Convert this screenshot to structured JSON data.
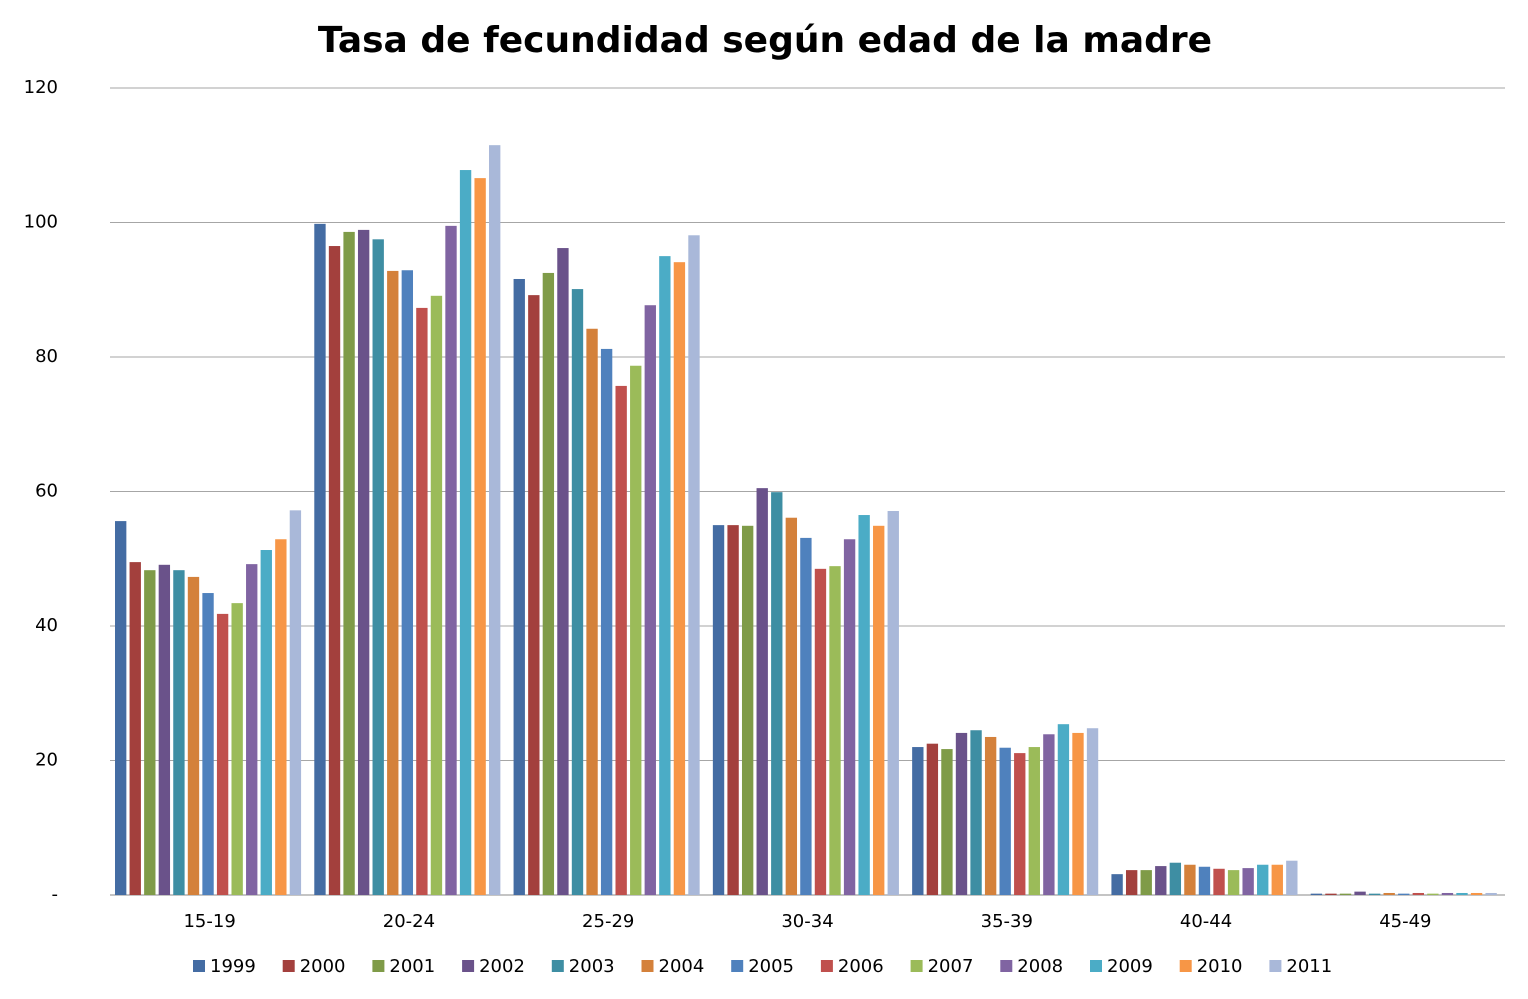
{
  "chart_data": {
    "type": "bar",
    "title": "Tasa de fecundidad según edad de la madre",
    "categories": [
      "15-19",
      "20-24",
      "25-29",
      "30-34",
      "35-39",
      "40-44",
      "45-49"
    ],
    "series": [
      {
        "name": "1999",
        "color": "#446ca3",
        "values": [
          55.6,
          99.8,
          91.6,
          55.0,
          22.0,
          3.1,
          0.2
        ]
      },
      {
        "name": "2000",
        "color": "#a3403d",
        "values": [
          49.5,
          96.5,
          89.2,
          55.0,
          22.5,
          3.7,
          0.2
        ]
      },
      {
        "name": "2001",
        "color": "#7f9b48",
        "values": [
          48.3,
          98.6,
          92.5,
          54.9,
          21.7,
          3.7,
          0.2
        ]
      },
      {
        "name": "2002",
        "color": "#6a528a",
        "values": [
          49.1,
          98.9,
          96.2,
          60.5,
          24.1,
          4.3,
          0.5
        ]
      },
      {
        "name": "2003",
        "color": "#3e8ea3",
        "values": [
          48.3,
          97.5,
          90.1,
          59.9,
          24.5,
          4.8,
          0.2
        ]
      },
      {
        "name": "2004",
        "color": "#d4813b",
        "values": [
          47.3,
          92.8,
          84.2,
          56.1,
          23.5,
          4.5,
          0.3
        ]
      },
      {
        "name": "2005",
        "color": "#4f81bd",
        "values": [
          44.9,
          92.9,
          81.2,
          53.1,
          21.9,
          4.2,
          0.2
        ]
      },
      {
        "name": "2006",
        "color": "#c0504d",
        "values": [
          41.8,
          87.3,
          75.7,
          48.5,
          21.1,
          3.9,
          0.3
        ]
      },
      {
        "name": "2007",
        "color": "#9bbb59",
        "values": [
          43.4,
          89.1,
          78.7,
          48.9,
          22.0,
          3.7,
          0.2
        ]
      },
      {
        "name": "2008",
        "color": "#8064a2",
        "values": [
          49.2,
          99.5,
          87.7,
          52.9,
          23.9,
          4.0,
          0.3
        ]
      },
      {
        "name": "2009",
        "color": "#4bacc6",
        "values": [
          51.3,
          107.8,
          95.0,
          56.5,
          25.4,
          4.5,
          0.3
        ]
      },
      {
        "name": "2010",
        "color": "#f79646",
        "values": [
          52.9,
          106.6,
          94.1,
          54.9,
          24.1,
          4.5,
          0.3
        ]
      },
      {
        "name": "2011",
        "color": "#a9b8d9",
        "values": [
          57.2,
          111.5,
          98.1,
          57.1,
          24.8,
          5.1,
          0.3
        ]
      }
    ],
    "ylim": [
      0,
      120
    ],
    "yticks": [
      {
        "value": 0,
        "label": "-"
      },
      20,
      40,
      60,
      80,
      100,
      120
    ],
    "grid": true,
    "legend": "bottom"
  }
}
